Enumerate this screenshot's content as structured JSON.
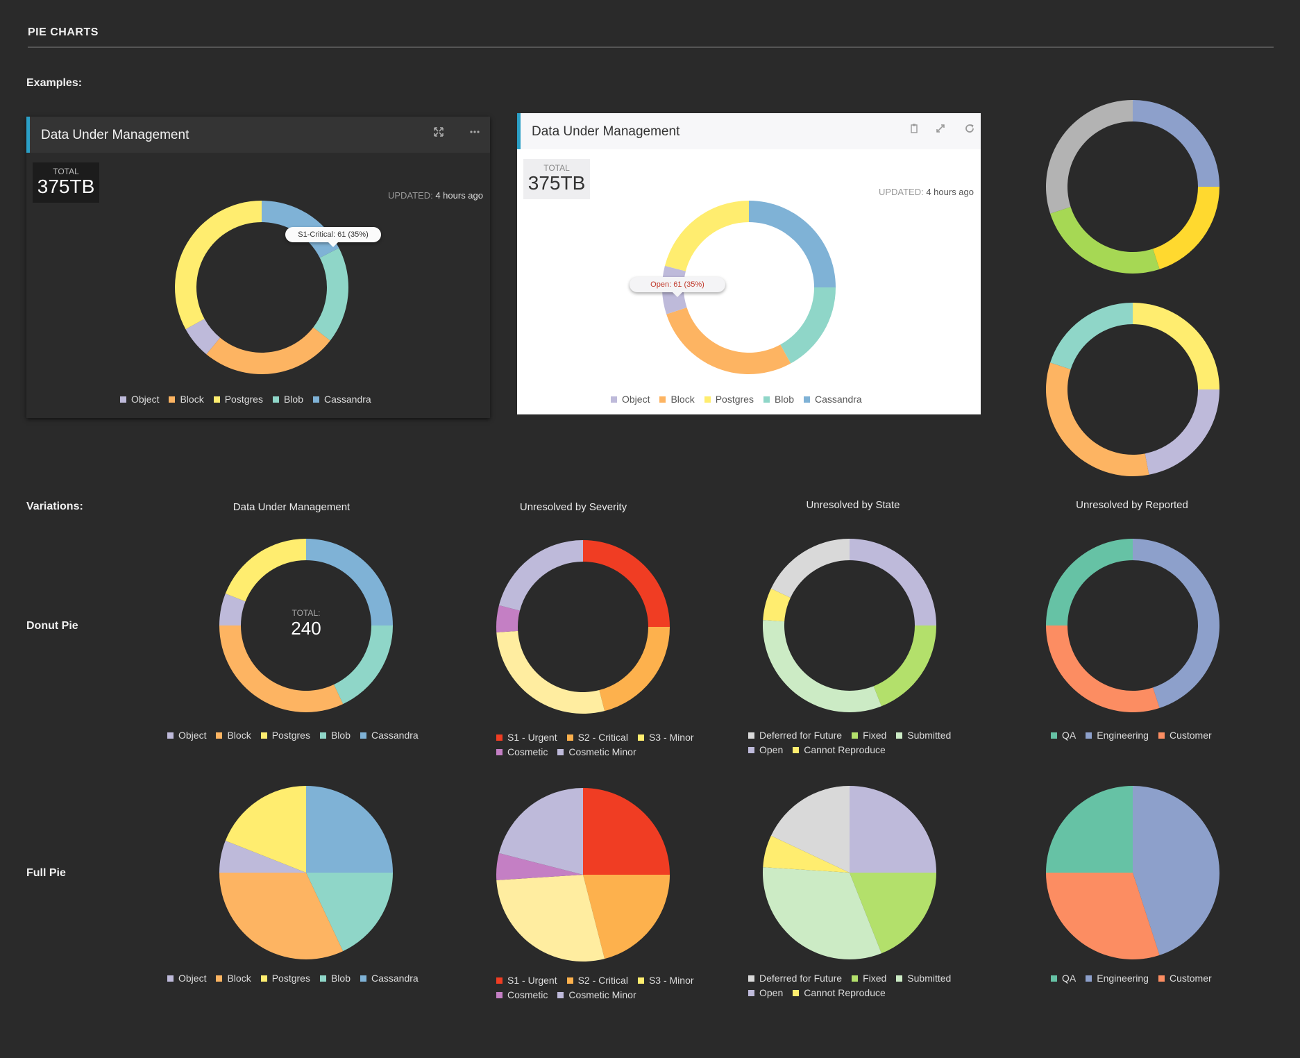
{
  "page": {
    "title": "PIE CHARTS",
    "examples_label": "Examples:",
    "variations_label": "Variations:",
    "row_donut_label": "Donut Pie",
    "row_full_label": "Full Pie",
    "column_titles": [
      "Data Under Management",
      "Unresolved by Severity",
      "Unresolved by State",
      "Unresolved by Reported"
    ]
  },
  "card_dark": {
    "title": "Data Under Management",
    "total_label": "TOTAL",
    "total_value": "375TB",
    "updated_label": "UPDATED:",
    "updated_value": "4 hours ago",
    "tooltip": "S1-Critical: 61 (35%)",
    "icons": [
      "expand-icon",
      "more-icon"
    ]
  },
  "card_light": {
    "title": "Data Under Management",
    "total_label": "TOTAL",
    "total_value": "375TB",
    "updated_label": "UPDATED:",
    "updated_value": "4 hours ago",
    "tooltip": "Open: 61 (35%)",
    "icons": [
      "clipboard-icon",
      "fullscreen-icon",
      "refresh-icon"
    ]
  },
  "donut_center": {
    "label": "TOTAL:",
    "value": "240"
  },
  "colors": {
    "dark_bg": "#2a2a2a",
    "accent": "#2b9fc6"
  },
  "chart_data": [
    {
      "id": "dum-dark-card",
      "type": "pie",
      "variant": "donut",
      "categories": [
        "Cassandra",
        "Blob",
        "Block",
        "Object",
        "Postgres"
      ],
      "values": [
        17.5,
        18,
        25.5,
        6,
        33
      ],
      "colors": [
        "#7fb2d6",
        "#8fd6c8",
        "#fdb462",
        "#bebada",
        "#ffed6f"
      ],
      "legend_order": [
        "Object",
        "Block",
        "Postgres",
        "Blob",
        "Cassandra"
      ],
      "legend_colors": [
        "#bebada",
        "#fdb462",
        "#ffed6f",
        "#8fd6c8",
        "#7fb2d6"
      ]
    },
    {
      "id": "dum-light-card",
      "type": "pie",
      "variant": "donut",
      "categories": [
        "Cassandra",
        "Blob",
        "Block",
        "Object",
        "Postgres"
      ],
      "values": [
        25,
        17,
        28,
        9,
        21
      ],
      "colors": [
        "#7fb2d6",
        "#8fd6c8",
        "#fdb462",
        "#bebada",
        "#ffed6f"
      ],
      "legend_order": [
        "Object",
        "Block",
        "Postgres",
        "Blob",
        "Cassandra"
      ],
      "legend_colors": [
        "#bebada",
        "#fdb462",
        "#ffed6f",
        "#8fd6c8",
        "#7fb2d6"
      ]
    },
    {
      "id": "example-side-1",
      "type": "pie",
      "variant": "donut",
      "values": [
        25,
        20,
        25,
        30
      ],
      "colors": [
        "#8da0cb",
        "#ffd92f",
        "#a6d854",
        "#b3b3b3"
      ]
    },
    {
      "id": "example-side-2",
      "type": "pie",
      "variant": "donut",
      "values": [
        25,
        22,
        33,
        20
      ],
      "colors": [
        "#ffed6f",
        "#bebada",
        "#fdb462",
        "#8fd6c8"
      ]
    },
    {
      "id": "dum-donut",
      "type": "pie",
      "variant": "donut",
      "categories": [
        "Cassandra",
        "Blob",
        "Block",
        "Object",
        "Postgres"
      ],
      "values": [
        25,
        18,
        32,
        6,
        19
      ],
      "colors": [
        "#7fb2d6",
        "#8fd6c8",
        "#fdb462",
        "#bebada",
        "#ffed6f"
      ],
      "legend_order": [
        "Object",
        "Block",
        "Postgres",
        "Blob",
        "Cassandra"
      ],
      "legend_colors": [
        "#bebada",
        "#fdb462",
        "#ffed6f",
        "#8fd6c8",
        "#7fb2d6"
      ]
    },
    {
      "id": "severity-donut",
      "type": "pie",
      "variant": "donut",
      "categories": [
        "S1 - Urgent",
        "S2 - Critical",
        "S3 - Minor",
        "Cosmetic",
        "Cosmetic Minor"
      ],
      "values": [
        25,
        21,
        28,
        5,
        21
      ],
      "colors": [
        "#f03d23",
        "#fdb14d",
        "#ffeda0",
        "#c47fc4",
        "#bebada"
      ],
      "legend_order": [
        "S1 - Urgent",
        "S2 - Critical",
        "S3 - Minor",
        "Cosmetic",
        "Cosmetic Minor"
      ],
      "legend_colors": [
        "#f03d23",
        "#fdb14d",
        "#ffed6f",
        "#c47fc4",
        "#bebada"
      ],
      "legend_rows": [
        3,
        2
      ]
    },
    {
      "id": "state-donut",
      "type": "pie",
      "variant": "donut",
      "categories": [
        "Open",
        "Fixed",
        "Submitted",
        "Cannot Reproduce",
        "Deferred for Future"
      ],
      "values": [
        25,
        19,
        32,
        6,
        18
      ],
      "colors": [
        "#bebada",
        "#b3e06b",
        "#ccebc5",
        "#ffed6f",
        "#d9d9d9"
      ],
      "legend_order": [
        "Deferred for Future",
        "Fixed",
        "Submitted",
        "Open",
        "Cannot Reproduce"
      ],
      "legend_colors": [
        "#d9d9d9",
        "#b3e06b",
        "#ccebc5",
        "#bebada",
        "#ffed6f"
      ],
      "legend_rows": [
        3,
        2
      ]
    },
    {
      "id": "reported-donut",
      "type": "pie",
      "variant": "donut",
      "categories": [
        "Engineering",
        "Customer",
        "QA"
      ],
      "values": [
        45,
        30,
        25
      ],
      "colors": [
        "#8da0cb",
        "#fc8d62",
        "#66c2a5"
      ],
      "legend_order": [
        "QA",
        "Engineering",
        "Customer"
      ],
      "legend_colors": [
        "#66c2a5",
        "#8da0cb",
        "#fc8d62"
      ]
    },
    {
      "id": "dum-full",
      "type": "pie",
      "variant": "full",
      "categories": [
        "Cassandra",
        "Blob",
        "Block",
        "Object",
        "Postgres"
      ],
      "values": [
        25,
        18,
        32,
        6,
        19
      ],
      "colors": [
        "#7fb2d6",
        "#8fd6c8",
        "#fdb462",
        "#bebada",
        "#ffed6f"
      ],
      "legend_order": [
        "Object",
        "Block",
        "Postgres",
        "Blob",
        "Cassandra"
      ],
      "legend_colors": [
        "#bebada",
        "#fdb462",
        "#ffed6f",
        "#8fd6c8",
        "#7fb2d6"
      ]
    },
    {
      "id": "severity-full",
      "type": "pie",
      "variant": "full",
      "categories": [
        "S1 - Urgent",
        "S2 - Critical",
        "S3 - Minor",
        "Cosmetic",
        "Cosmetic Minor"
      ],
      "values": [
        25,
        21,
        28,
        5,
        21
      ],
      "colors": [
        "#f03d23",
        "#fdb14d",
        "#ffeda0",
        "#c47fc4",
        "#bebada"
      ],
      "legend_order": [
        "S1 - Urgent",
        "S2 - Critical",
        "S3 - Minor",
        "Cosmetic",
        "Cosmetic Minor"
      ],
      "legend_colors": [
        "#f03d23",
        "#fdb14d",
        "#ffed6f",
        "#c47fc4",
        "#bebada"
      ],
      "legend_rows": [
        3,
        2
      ]
    },
    {
      "id": "state-full",
      "type": "pie",
      "variant": "full",
      "categories": [
        "Open",
        "Fixed",
        "Submitted",
        "Cannot Reproduce",
        "Deferred for Future"
      ],
      "values": [
        25,
        19,
        32,
        6,
        18
      ],
      "colors": [
        "#bebada",
        "#b3e06b",
        "#ccebc5",
        "#ffed6f",
        "#d9d9d9"
      ],
      "legend_order": [
        "Deferred for Future",
        "Fixed",
        "Submitted",
        "Open",
        "Cannot Reproduce"
      ],
      "legend_colors": [
        "#d9d9d9",
        "#b3e06b",
        "#ccebc5",
        "#bebada",
        "#ffed6f"
      ],
      "legend_rows": [
        3,
        2
      ]
    },
    {
      "id": "reported-full",
      "type": "pie",
      "variant": "full",
      "categories": [
        "Engineering",
        "Customer",
        "QA"
      ],
      "values": [
        45,
        30,
        25
      ],
      "colors": [
        "#8da0cb",
        "#fc8d62",
        "#66c2a5"
      ],
      "legend_order": [
        "QA",
        "Engineering",
        "Customer"
      ],
      "legend_colors": [
        "#66c2a5",
        "#8da0cb",
        "#fc8d62"
      ]
    }
  ]
}
